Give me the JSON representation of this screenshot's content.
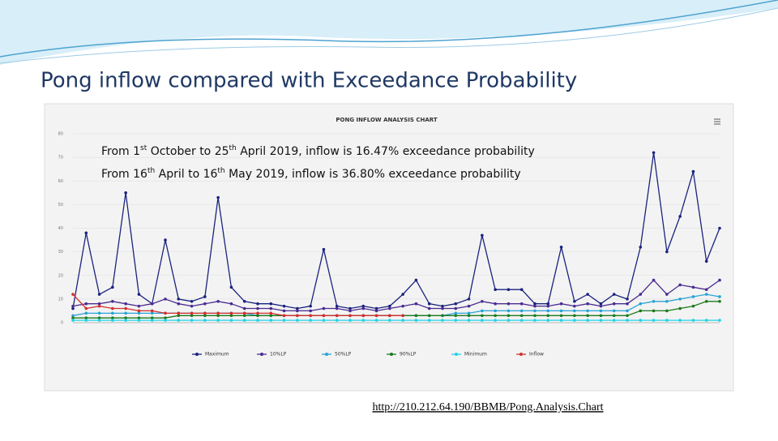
{
  "slide_title": "Pong inflow compared with Exceedance Probability",
  "link": "http://210.212.64.190/BBMB/Pong.Analysis.Chart",
  "chart_data": {
    "type": "line",
    "title": "PONG INFLOW ANALYSIS CHART",
    "annotations": [
      [
        {
          "text": "From 1"
        },
        {
          "text": "st",
          "sup": true
        },
        {
          "text": " October to 25"
        },
        {
          "text": "th",
          "sup": true
        },
        {
          "text": " April 2019, inflow is 16.47% exceedance probability"
        }
      ],
      [
        {
          "text": "From 16"
        },
        {
          "text": "th",
          "sup": true
        },
        {
          "text": " April to 16"
        },
        {
          "text": "th",
          "sup": true
        },
        {
          "text": " May 2019, inflow is 36.80% exceedance probability"
        }
      ]
    ],
    "categories": [
      null,
      null,
      null,
      null,
      null,
      null,
      null,
      null,
      null,
      null,
      null,
      null,
      null,
      null,
      null,
      null,
      null,
      null,
      null,
      null,
      null,
      null,
      null,
      null,
      null,
      null,
      null,
      null,
      null,
      null,
      null,
      null,
      null,
      null,
      null,
      null,
      null,
      null,
      null,
      null,
      null,
      null,
      null,
      null,
      null,
      null,
      null,
      null,
      null,
      null
    ],
    "ylim": [
      0,
      80
    ],
    "yticks": [
      0,
      10,
      20,
      30,
      40,
      50,
      60,
      70,
      80
    ],
    "grid": true,
    "series": [
      {
        "name": "Maximum",
        "color": "#1a237e",
        "values": [
          6,
          38,
          12,
          15,
          55,
          12,
          8,
          35,
          10,
          9,
          11,
          53,
          15,
          9,
          8,
          8,
          7,
          6,
          7,
          31,
          7,
          6,
          7,
          6,
          7,
          12,
          18,
          8,
          7,
          8,
          10,
          37,
          14,
          14,
          14,
          8,
          8,
          32,
          9,
          12,
          8,
          12,
          10,
          32,
          72,
          30,
          45,
          64,
          26,
          40
        ]
      },
      {
        "name": "10%LP",
        "color": "#4a2c91",
        "values": [
          7,
          8,
          8,
          9,
          8,
          7,
          8,
          10,
          8,
          7,
          8,
          9,
          8,
          6,
          6,
          6,
          5,
          5,
          5,
          6,
          6,
          5,
          6,
          5,
          6,
          7,
          8,
          6,
          6,
          6,
          7,
          9,
          8,
          8,
          8,
          7,
          7,
          8,
          7,
          8,
          7,
          8,
          8,
          12,
          18,
          12,
          16,
          15,
          14,
          18
        ]
      },
      {
        "name": "50%LP",
        "color": "#29a3d6",
        "values": [
          3,
          4,
          4,
          4,
          4,
          4,
          4,
          4,
          4,
          4,
          4,
          4,
          4,
          4,
          3,
          3,
          3,
          3,
          3,
          3,
          3,
          3,
          3,
          3,
          3,
          3,
          3,
          3,
          3,
          4,
          4,
          5,
          5,
          5,
          5,
          5,
          5,
          5,
          5,
          5,
          5,
          5,
          5,
          8,
          9,
          9,
          10,
          11,
          12,
          11
        ]
      },
      {
        "name": "90%LP",
        "color": "#1b7a1b",
        "values": [
          2,
          2,
          2,
          2,
          2,
          2,
          2,
          2,
          3,
          3,
          3,
          3,
          3,
          3,
          3,
          3,
          3,
          3,
          3,
          3,
          3,
          3,
          3,
          3,
          3,
          3,
          3,
          3,
          3,
          3,
          3,
          3,
          3,
          3,
          3,
          3,
          3,
          3,
          3,
          3,
          3,
          3,
          3,
          5,
          5,
          5,
          6,
          7,
          9,
          9
        ]
      },
      {
        "name": "Minimum",
        "color": "#22d3e6",
        "values": [
          1,
          1,
          1,
          1,
          1,
          1,
          1,
          1,
          1,
          1,
          1,
          1,
          1,
          1,
          1,
          1,
          1,
          1,
          1,
          1,
          1,
          1,
          1,
          1,
          1,
          1,
          1,
          1,
          1,
          1,
          1,
          1,
          1,
          1,
          1,
          1,
          1,
          1,
          1,
          1,
          1,
          1,
          1,
          1,
          1,
          1,
          1,
          1,
          1,
          1
        ]
      },
      {
        "name": "Inflow",
        "color": "#d32f2f",
        "values": [
          12,
          6,
          7,
          6,
          6,
          5,
          5,
          4,
          4,
          4,
          4,
          4,
          4,
          4,
          4,
          4,
          3,
          3,
          3,
          3,
          3,
          3,
          3,
          3,
          3,
          3,
          null,
          null,
          null,
          null,
          null,
          null,
          null,
          null,
          null,
          null,
          null,
          null,
          null,
          null,
          null,
          null,
          null,
          null,
          null,
          null,
          null,
          null,
          null,
          null
        ]
      }
    ]
  }
}
